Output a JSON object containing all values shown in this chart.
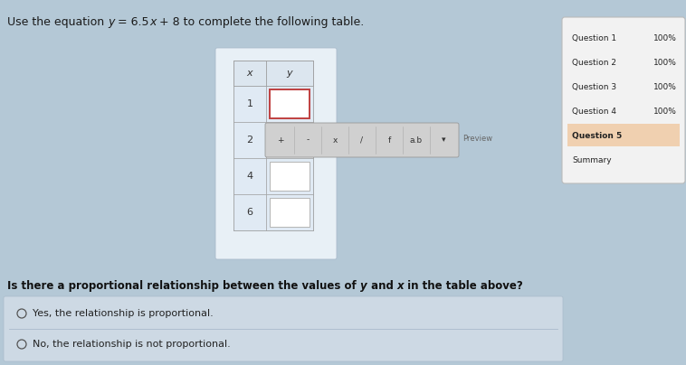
{
  "bg_color": "#b4c8d6",
  "title_parts": [
    [
      "Use the equation ",
      false
    ],
    [
      "y",
      true
    ],
    [
      " = 6.5",
      false
    ],
    [
      "x",
      true
    ],
    [
      " + 8 to complete the following table.",
      false
    ]
  ],
  "table_x_vals": [
    "1",
    "2",
    "4",
    "6"
  ],
  "sidebar_items": [
    "Question 1",
    "Question 2",
    "Question 3",
    "Question 4",
    "Question 5",
    "Summary"
  ],
  "sidebar_percents": [
    "100%",
    "100%",
    "100%",
    "100%",
    "",
    ""
  ],
  "sidebar_highlight": 4,
  "question_text": "Is there a proportional relationship between the values of ",
  "question_italic1": "y",
  "question_mid": " and ",
  "question_italic2": "x",
  "question_end": " in the table above?",
  "option1": "Yes, the relationship is proportional.",
  "option2": "No, the relationship is not proportional.",
  "preview_label": "Preview",
  "toolbar_buttons": [
    "+",
    "-",
    "x",
    "/",
    "f",
    "a.b",
    "▾"
  ],
  "panel_bg": "#d4e2ec",
  "sidebar_bg": "#f2f2f2",
  "sidebar_highlight_color": "#f0d0b0",
  "answer_bg": "#ccdae6",
  "input_border_active": "#c04040",
  "input_bg": "#ffffff",
  "toolbar_bg": "#d8d8d8",
  "table_border": "#999999",
  "header_bg": "#c8d8e4"
}
